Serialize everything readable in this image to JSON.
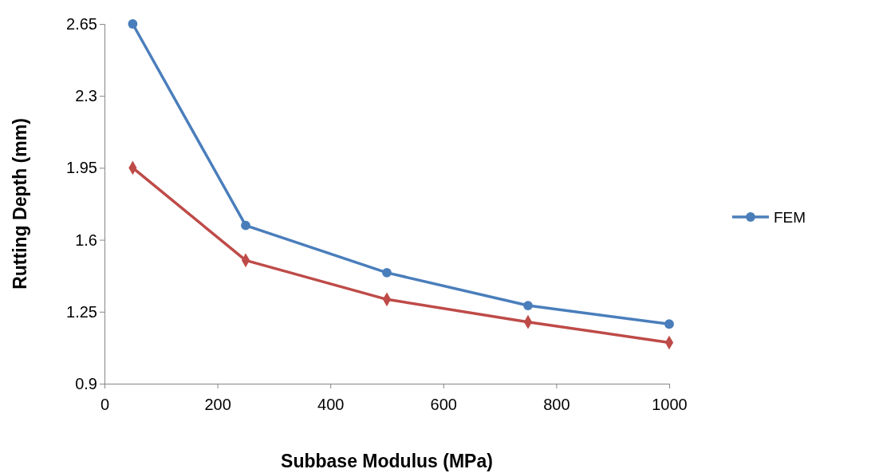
{
  "chart_data": {
    "type": "line",
    "xlabel": "Subbase  Modulus (MPa)",
    "ylabel": "Rutting Depth (mm)",
    "x": [
      50,
      250,
      500,
      750,
      1000
    ],
    "series": [
      {
        "name": "FEM",
        "color": "#4a7ebb",
        "marker": "circle",
        "values": [
          2.65,
          1.67,
          1.44,
          1.28,
          1.19
        ]
      },
      {
        "color": "#be4b48",
        "marker": "diamond",
        "values": [
          1.95,
          1.5,
          1.31,
          1.2,
          1.1
        ]
      }
    ],
    "xlim": [
      0,
      1000
    ],
    "xticks": [
      0,
      200,
      400,
      600,
      800,
      1000
    ],
    "ylim": [
      0.9,
      2.65
    ],
    "yticks": [
      0.9,
      1.25,
      1.6,
      1.95,
      2.3,
      2.65
    ],
    "grid": false,
    "legend": "right"
  }
}
